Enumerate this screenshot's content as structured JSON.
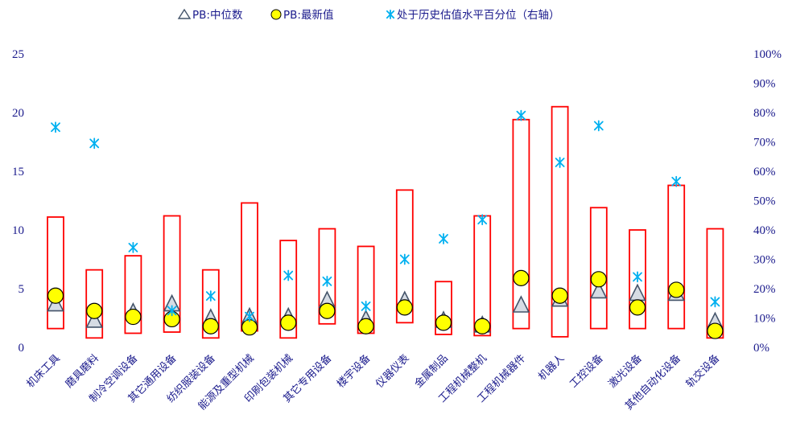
{
  "chart_data": {
    "type": "box-range-scatter",
    "categories": [
      "机床工具",
      "磨具磨料",
      "制冷空调设备",
      "其它通用设备",
      "纺织服装设备",
      "能源及重型机械",
      "印刷包装机械",
      "其它专用设备",
      "楼宇设备",
      "仪器仪表",
      "金属制品",
      "工程机械整机",
      "工程机械器件",
      "机器人",
      "工控设备",
      "激光设备",
      "其他自动化设备",
      "轨交设备"
    ],
    "range_low": [
      1.6,
      0.8,
      1.2,
      1.3,
      0.8,
      1.4,
      0.8,
      2.0,
      1.2,
      2.1,
      1.1,
      1.0,
      1.6,
      0.9,
      1.6,
      1.6,
      1.6,
      0.8
    ],
    "range_high": [
      11.1,
      6.6,
      7.8,
      11.2,
      6.6,
      12.3,
      9.1,
      10.1,
      8.6,
      13.4,
      5.6,
      11.2,
      19.4,
      20.5,
      11.9,
      10.0,
      13.8,
      10.1
    ],
    "series": [
      {
        "name": "PB:中位数",
        "axis": "left",
        "values": [
          3.7,
          2.3,
          3.0,
          3.7,
          2.5,
          2.6,
          2.6,
          4.0,
          2.4,
          4.0,
          2.3,
          1.9,
          3.6,
          4.1,
          4.8,
          4.6,
          4.6,
          2.2
        ]
      },
      {
        "name": "PB:最新值",
        "axis": "left",
        "values": [
          4.4,
          3.1,
          2.6,
          2.4,
          1.8,
          1.7,
          2.1,
          3.1,
          1.8,
          3.4,
          2.1,
          1.8,
          5.9,
          4.4,
          5.8,
          3.4,
          4.9,
          1.4
        ]
      },
      {
        "name": "处于历史估值水平百分位（右轴）",
        "axis": "right",
        "values": [
          75,
          69.5,
          34,
          12.5,
          17.5,
          10.5,
          24.5,
          22.5,
          14,
          30,
          37,
          43.5,
          79,
          63,
          75.5,
          24,
          56.5,
          15.5
        ]
      }
    ],
    "y_left": {
      "min": 0,
      "max": 25,
      "ticks": [
        "0",
        "5",
        "10",
        "15",
        "20",
        "25"
      ]
    },
    "y_right": {
      "min": 0,
      "max": 100,
      "ticks": [
        "0%",
        "10%",
        "20%",
        "30%",
        "40%",
        "50%",
        "60%",
        "70%",
        "80%",
        "90%",
        "100%"
      ]
    },
    "legend_position": "top-center",
    "colors": {
      "range_box": "#ff0000",
      "median_fill": "#d6dce4",
      "median_stroke": "#44546a",
      "latest_fill": "#ffff00",
      "latest_stroke": "#000000",
      "percentile": "#00b0f0",
      "text": "#1a1a8c"
    }
  }
}
